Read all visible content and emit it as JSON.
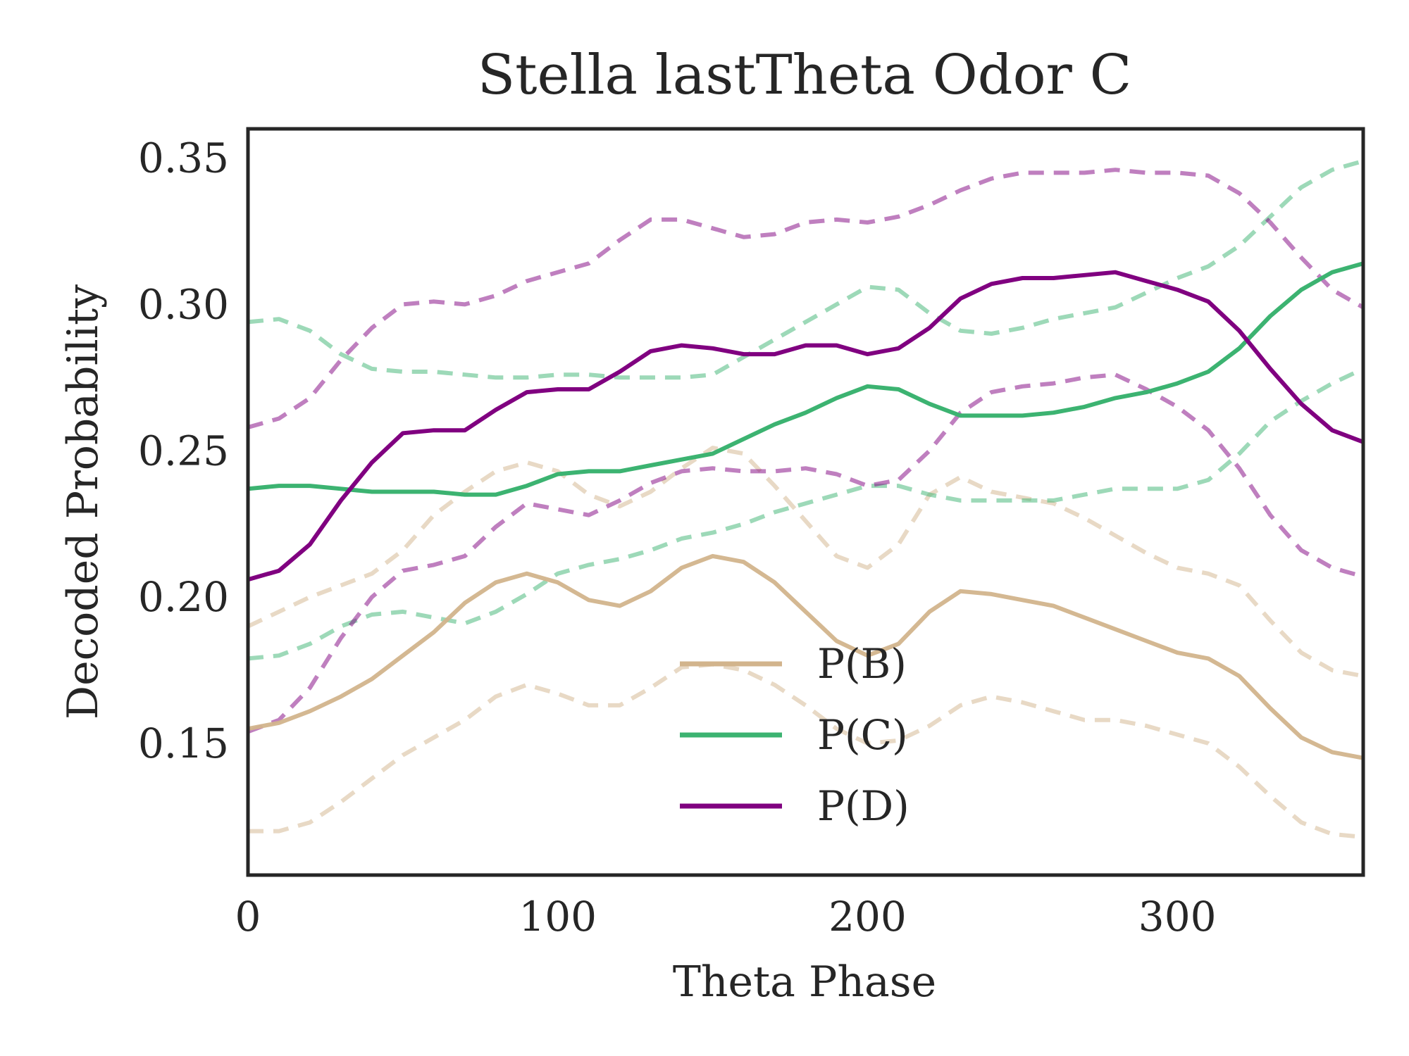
{
  "chart_data": {
    "type": "line",
    "title": "Stella lastTheta Odor C",
    "xlabel": "Theta Phase",
    "ylabel": "Decoded Probability",
    "xlim": [
      0,
      360
    ],
    "ylim": [
      0.105,
      0.36
    ],
    "xticks": [
      0,
      100,
      200,
      300
    ],
    "xtick_labels": [
      "0",
      "100",
      "200",
      "300"
    ],
    "yticks": [
      0.15,
      0.2,
      0.25,
      0.3,
      0.35
    ],
    "ytick_labels": [
      "0.15",
      "0.20",
      "0.25",
      "0.30",
      "0.35"
    ],
    "grid": false,
    "legend_position": "lower center",
    "x": [
      0,
      10,
      20,
      30,
      40,
      50,
      60,
      70,
      80,
      90,
      100,
      110,
      120,
      130,
      140,
      150,
      160,
      170,
      180,
      190,
      200,
      210,
      220,
      230,
      240,
      250,
      260,
      270,
      280,
      290,
      300,
      310,
      320,
      330,
      340,
      350,
      360
    ],
    "series": [
      {
        "name": "P(B)",
        "color": "#d2b48c",
        "values": [
          0.155,
          0.157,
          0.161,
          0.166,
          0.172,
          0.18,
          0.188,
          0.198,
          0.205,
          0.208,
          0.205,
          0.199,
          0.197,
          0.202,
          0.21,
          0.214,
          0.212,
          0.205,
          0.195,
          0.185,
          0.18,
          0.184,
          0.195,
          0.202,
          0.201,
          0.199,
          0.197,
          0.193,
          0.189,
          0.185,
          0.181,
          0.179,
          0.173,
          0.162,
          0.152,
          0.147,
          0.145
        ],
        "upper": [
          0.19,
          0.195,
          0.2,
          0.204,
          0.208,
          0.216,
          0.228,
          0.236,
          0.243,
          0.246,
          0.243,
          0.235,
          0.231,
          0.236,
          0.244,
          0.251,
          0.249,
          0.238,
          0.226,
          0.214,
          0.21,
          0.218,
          0.235,
          0.241,
          0.236,
          0.234,
          0.232,
          0.227,
          0.221,
          0.215,
          0.21,
          0.208,
          0.204,
          0.192,
          0.181,
          0.175,
          0.173
        ],
        "lower": [
          0.12,
          0.12,
          0.123,
          0.13,
          0.138,
          0.146,
          0.152,
          0.158,
          0.166,
          0.17,
          0.167,
          0.163,
          0.163,
          0.169,
          0.176,
          0.177,
          0.175,
          0.17,
          0.163,
          0.155,
          0.15,
          0.151,
          0.156,
          0.163,
          0.166,
          0.164,
          0.161,
          0.158,
          0.158,
          0.156,
          0.153,
          0.15,
          0.142,
          0.132,
          0.123,
          0.119,
          0.118
        ]
      },
      {
        "name": "P(C)",
        "color": "#3cb371",
        "values": [
          0.237,
          0.238,
          0.238,
          0.237,
          0.236,
          0.236,
          0.236,
          0.235,
          0.235,
          0.238,
          0.242,
          0.243,
          0.243,
          0.245,
          0.247,
          0.249,
          0.254,
          0.259,
          0.263,
          0.268,
          0.272,
          0.271,
          0.266,
          0.262,
          0.262,
          0.262,
          0.263,
          0.265,
          0.268,
          0.27,
          0.273,
          0.277,
          0.285,
          0.296,
          0.305,
          0.311,
          0.314
        ],
        "upper": [
          0.294,
          0.295,
          0.291,
          0.283,
          0.278,
          0.277,
          0.277,
          0.276,
          0.275,
          0.275,
          0.276,
          0.276,
          0.275,
          0.275,
          0.275,
          0.276,
          0.282,
          0.288,
          0.294,
          0.3,
          0.306,
          0.305,
          0.297,
          0.291,
          0.29,
          0.292,
          0.295,
          0.297,
          0.299,
          0.304,
          0.309,
          0.313,
          0.32,
          0.33,
          0.34,
          0.346,
          0.349
        ],
        "lower": [
          0.179,
          0.18,
          0.184,
          0.19,
          0.194,
          0.195,
          0.193,
          0.191,
          0.195,
          0.201,
          0.208,
          0.211,
          0.213,
          0.216,
          0.22,
          0.222,
          0.225,
          0.229,
          0.232,
          0.235,
          0.238,
          0.238,
          0.235,
          0.233,
          0.233,
          0.233,
          0.233,
          0.235,
          0.237,
          0.237,
          0.237,
          0.24,
          0.249,
          0.26,
          0.267,
          0.273,
          0.278
        ]
      },
      {
        "name": "P(D)",
        "color": "#800080",
        "values": [
          0.206,
          0.209,
          0.218,
          0.233,
          0.246,
          0.256,
          0.257,
          0.257,
          0.264,
          0.27,
          0.271,
          0.271,
          0.277,
          0.284,
          0.286,
          0.285,
          0.283,
          0.283,
          0.286,
          0.286,
          0.283,
          0.285,
          0.292,
          0.302,
          0.307,
          0.309,
          0.309,
          0.31,
          0.311,
          0.308,
          0.305,
          0.301,
          0.291,
          0.278,
          0.266,
          0.257,
          0.253
        ],
        "upper": [
          0.258,
          0.261,
          0.268,
          0.281,
          0.292,
          0.3,
          0.301,
          0.3,
          0.303,
          0.308,
          0.311,
          0.314,
          0.322,
          0.329,
          0.329,
          0.326,
          0.323,
          0.324,
          0.328,
          0.329,
          0.328,
          0.33,
          0.334,
          0.339,
          0.343,
          0.345,
          0.345,
          0.345,
          0.346,
          0.345,
          0.345,
          0.344,
          0.338,
          0.328,
          0.316,
          0.305,
          0.299
        ],
        "lower": [
          0.154,
          0.158,
          0.169,
          0.186,
          0.2,
          0.209,
          0.211,
          0.214,
          0.224,
          0.232,
          0.23,
          0.228,
          0.233,
          0.239,
          0.243,
          0.244,
          0.243,
          0.243,
          0.244,
          0.242,
          0.238,
          0.24,
          0.25,
          0.263,
          0.27,
          0.272,
          0.273,
          0.275,
          0.276,
          0.271,
          0.265,
          0.257,
          0.244,
          0.228,
          0.216,
          0.21,
          0.207
        ]
      }
    ]
  }
}
